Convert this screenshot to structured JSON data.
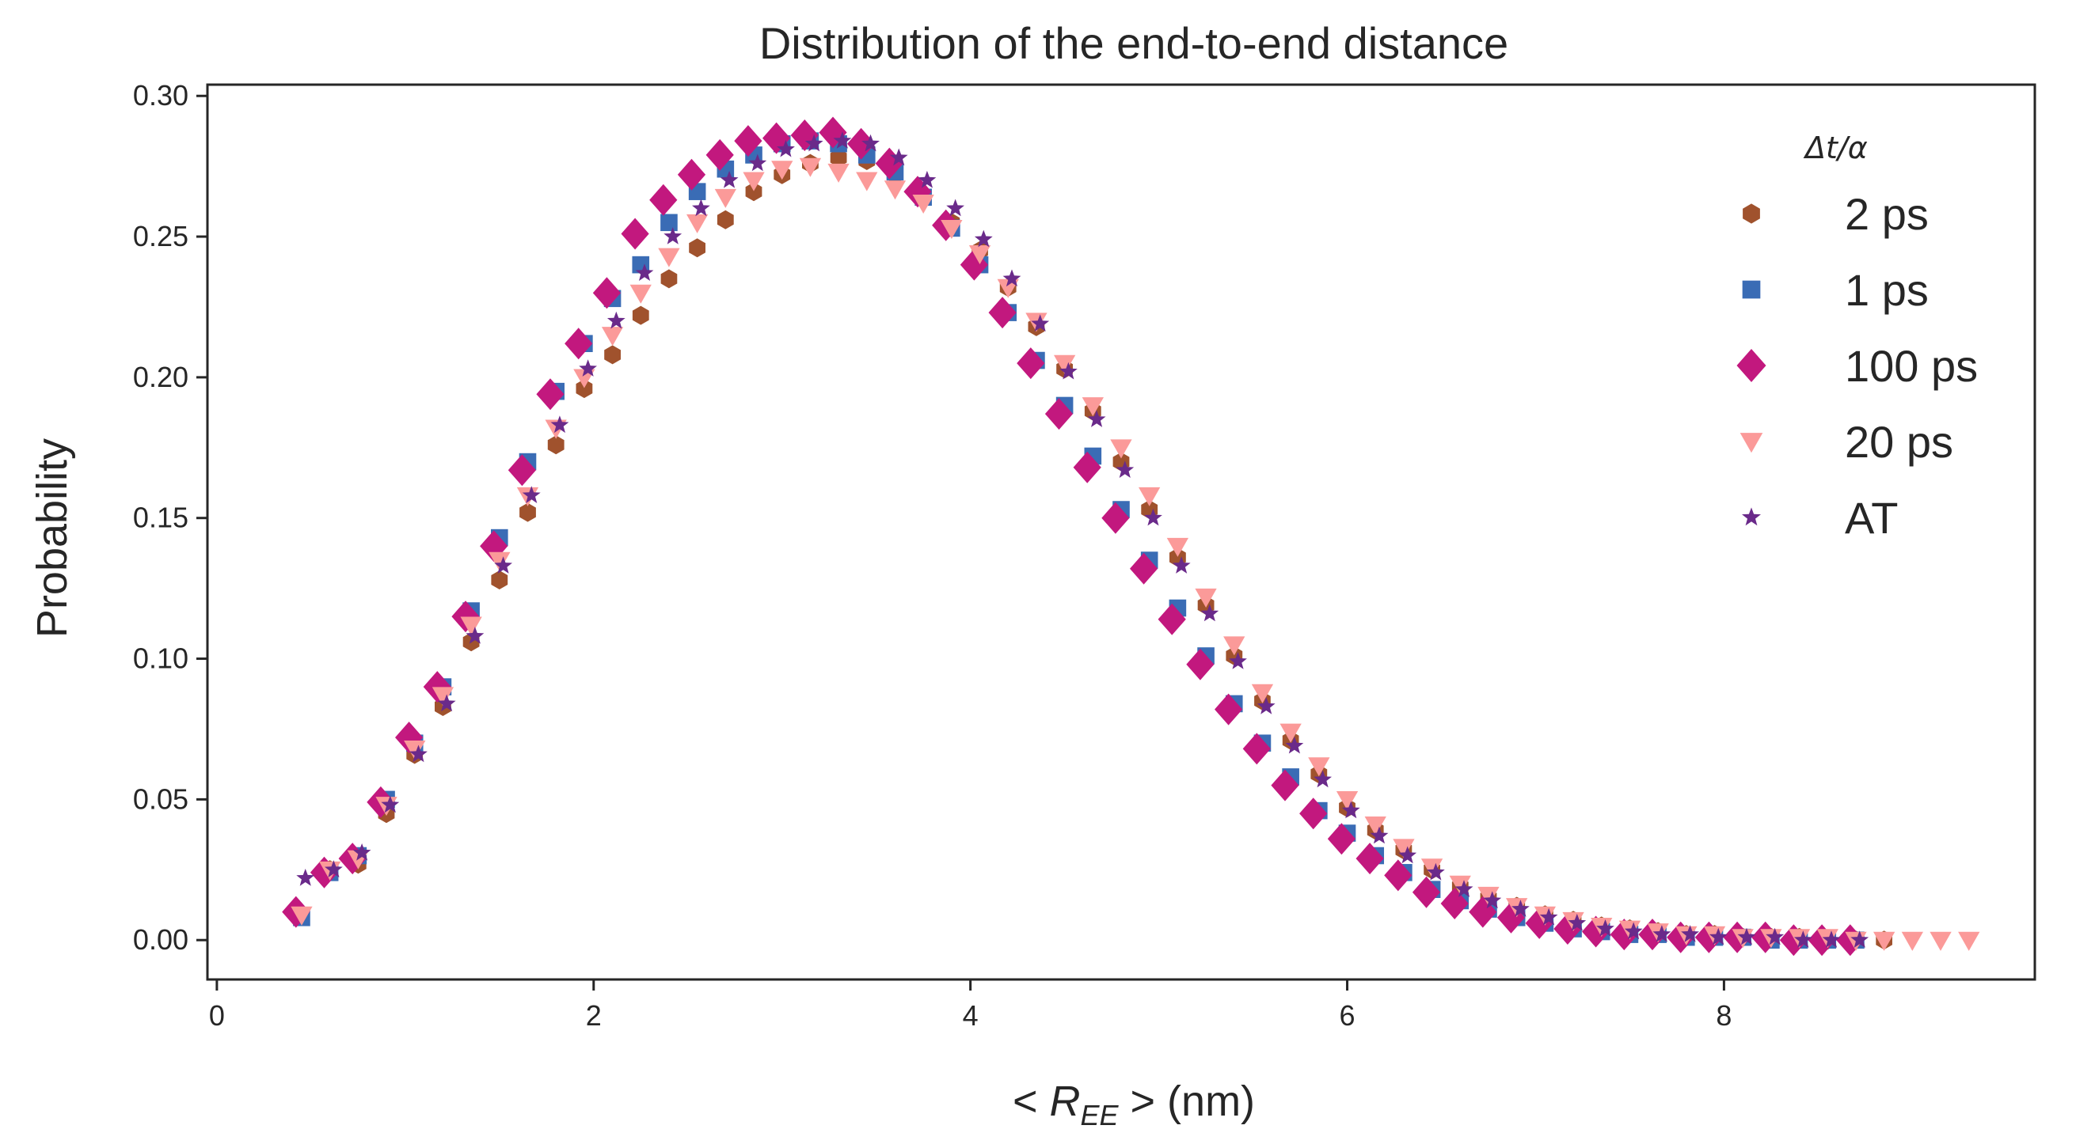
{
  "chart_data": {
    "type": "scatter",
    "title": "Distribution of the end-to-end distance",
    "xlabel_prefix": "< ",
    "xlabel_symbol": "R",
    "xlabel_subscript": "EE",
    "xlabel_suffix": " >  (nm)",
    "ylabel": "Probability",
    "xlim": [
      -0.05,
      9.65
    ],
    "ylim": [
      -0.014,
      0.304
    ],
    "x_ticks": [
      0,
      2,
      4,
      6,
      8
    ],
    "x_tick_labels": [
      "0",
      "2",
      "4",
      "6",
      "8"
    ],
    "y_ticks": [
      0.0,
      0.05,
      0.1,
      0.15,
      0.2,
      0.25,
      0.3
    ],
    "y_tick_labels": [
      "0.00",
      "0.05",
      "0.10",
      "0.15",
      "0.20",
      "0.25",
      "0.30"
    ],
    "grid": false,
    "legend": {
      "position": "top-right",
      "title": "Δt/α",
      "entries": [
        "2 ps",
        "1 ps",
        "100 ps",
        "20 ps",
        "AT"
      ]
    },
    "series": [
      {
        "name": "2 ps",
        "marker": "hexagon",
        "color": "#a0522d",
        "x": [
          0.45,
          0.6,
          0.75,
          0.9,
          1.05,
          1.2,
          1.35,
          1.5,
          1.65,
          1.8,
          1.95,
          2.1,
          2.25,
          2.4,
          2.55,
          2.7,
          2.85,
          3.0,
          3.15,
          3.3,
          3.45,
          3.6,
          3.75,
          3.9,
          4.05,
          4.2,
          4.35,
          4.5,
          4.65,
          4.8,
          4.95,
          5.1,
          5.25,
          5.4,
          5.55,
          5.7,
          5.85,
          6.0,
          6.15,
          6.3,
          6.45,
          6.6,
          6.75,
          6.9,
          7.05,
          7.2,
          7.35,
          7.5,
          7.65,
          7.8,
          7.95,
          8.1,
          8.25,
          8.4,
          8.55,
          8.7,
          8.85
        ],
        "y": [
          0.009,
          0.025,
          0.027,
          0.045,
          0.066,
          0.083,
          0.106,
          0.128,
          0.152,
          0.176,
          0.196,
          0.208,
          0.222,
          0.235,
          0.246,
          0.256,
          0.266,
          0.272,
          0.276,
          0.278,
          0.277,
          0.272,
          0.264,
          0.255,
          0.245,
          0.232,
          0.218,
          0.203,
          0.188,
          0.17,
          0.153,
          0.136,
          0.119,
          0.101,
          0.085,
          0.071,
          0.059,
          0.047,
          0.039,
          0.032,
          0.025,
          0.019,
          0.015,
          0.012,
          0.009,
          0.007,
          0.005,
          0.004,
          0.003,
          0.002,
          0.002,
          0.001,
          0.001,
          0.001,
          0.0,
          0.0,
          0.0
        ]
      },
      {
        "name": "1 ps",
        "marker": "square",
        "color": "#3a6cb5",
        "x": [
          0.45,
          0.6,
          0.75,
          0.9,
          1.05,
          1.2,
          1.35,
          1.5,
          1.65,
          1.8,
          1.95,
          2.1,
          2.25,
          2.4,
          2.55,
          2.7,
          2.85,
          3.0,
          3.15,
          3.3,
          3.45,
          3.6,
          3.75,
          3.9,
          4.05,
          4.2,
          4.35,
          4.5,
          4.65,
          4.8,
          4.95,
          5.1,
          5.25,
          5.4,
          5.55,
          5.7,
          5.85,
          6.0,
          6.15,
          6.3,
          6.45,
          6.6,
          6.75,
          6.9,
          7.05,
          7.2,
          7.35,
          7.5,
          7.65,
          7.8,
          7.95,
          8.1,
          8.25,
          8.4,
          8.55,
          8.7
        ],
        "y": [
          0.008,
          0.024,
          0.03,
          0.05,
          0.07,
          0.09,
          0.117,
          0.143,
          0.17,
          0.195,
          0.212,
          0.228,
          0.24,
          0.255,
          0.266,
          0.274,
          0.279,
          0.283,
          0.284,
          0.283,
          0.279,
          0.273,
          0.264,
          0.253,
          0.24,
          0.223,
          0.206,
          0.19,
          0.172,
          0.153,
          0.135,
          0.118,
          0.101,
          0.084,
          0.07,
          0.058,
          0.046,
          0.038,
          0.03,
          0.024,
          0.018,
          0.014,
          0.011,
          0.008,
          0.006,
          0.004,
          0.003,
          0.002,
          0.002,
          0.001,
          0.001,
          0.001,
          0.0,
          0.0,
          0.0,
          0.0
        ]
      },
      {
        "name": "100 ps",
        "marker": "diamond",
        "color": "#c2187e",
        "x": [
          0.42,
          0.57,
          0.72,
          0.87,
          1.02,
          1.17,
          1.32,
          1.47,
          1.62,
          1.77,
          1.92,
          2.07,
          2.22,
          2.37,
          2.52,
          2.67,
          2.82,
          2.97,
          3.12,
          3.27,
          3.42,
          3.57,
          3.72,
          3.87,
          4.02,
          4.17,
          4.32,
          4.47,
          4.62,
          4.77,
          4.92,
          5.07,
          5.22,
          5.37,
          5.52,
          5.67,
          5.82,
          5.97,
          6.12,
          6.27,
          6.42,
          6.57,
          6.72,
          6.87,
          7.02,
          7.17,
          7.32,
          7.47,
          7.62,
          7.77,
          7.92,
          8.07,
          8.22,
          8.37,
          8.52,
          8.67
        ],
        "y": [
          0.01,
          0.024,
          0.029,
          0.049,
          0.072,
          0.09,
          0.115,
          0.14,
          0.167,
          0.194,
          0.212,
          0.23,
          0.251,
          0.263,
          0.272,
          0.279,
          0.284,
          0.285,
          0.286,
          0.287,
          0.283,
          0.276,
          0.266,
          0.254,
          0.24,
          0.223,
          0.205,
          0.187,
          0.168,
          0.15,
          0.132,
          0.114,
          0.098,
          0.082,
          0.068,
          0.055,
          0.045,
          0.036,
          0.029,
          0.023,
          0.017,
          0.013,
          0.01,
          0.008,
          0.006,
          0.004,
          0.003,
          0.002,
          0.002,
          0.001,
          0.001,
          0.001,
          0.001,
          0.0,
          0.0,
          0.0
        ]
      },
      {
        "name": "20 ps",
        "marker": "triangle-down",
        "color": "#fb9a99",
        "x": [
          0.45,
          0.6,
          0.75,
          0.9,
          1.05,
          1.2,
          1.35,
          1.5,
          1.65,
          1.8,
          1.95,
          2.1,
          2.25,
          2.4,
          2.55,
          2.7,
          2.85,
          3.0,
          3.15,
          3.3,
          3.45,
          3.6,
          3.75,
          3.9,
          4.05,
          4.2,
          4.35,
          4.5,
          4.65,
          4.8,
          4.95,
          5.1,
          5.25,
          5.4,
          5.55,
          5.7,
          5.85,
          6.0,
          6.15,
          6.3,
          6.45,
          6.6,
          6.75,
          6.9,
          7.05,
          7.2,
          7.35,
          7.5,
          7.65,
          7.8,
          7.95,
          8.1,
          8.25,
          8.4,
          8.55,
          8.7,
          8.85,
          9.0,
          9.15,
          9.3
        ],
        "y": [
          0.009,
          0.025,
          0.029,
          0.048,
          0.068,
          0.087,
          0.112,
          0.135,
          0.158,
          0.182,
          0.2,
          0.215,
          0.23,
          0.243,
          0.255,
          0.264,
          0.27,
          0.274,
          0.275,
          0.273,
          0.27,
          0.267,
          0.262,
          0.253,
          0.244,
          0.232,
          0.22,
          0.205,
          0.19,
          0.175,
          0.158,
          0.14,
          0.122,
          0.105,
          0.088,
          0.074,
          0.062,
          0.05,
          0.041,
          0.033,
          0.026,
          0.02,
          0.016,
          0.012,
          0.009,
          0.007,
          0.005,
          0.004,
          0.003,
          0.002,
          0.002,
          0.001,
          0.001,
          0.001,
          0.001,
          0.0,
          0.0,
          0.0,
          0.0,
          0.0
        ]
      },
      {
        "name": "AT",
        "marker": "star",
        "color": "#6a2a8a",
        "x": [
          0.47,
          0.62,
          0.77,
          0.92,
          1.07,
          1.22,
          1.37,
          1.52,
          1.67,
          1.82,
          1.97,
          2.12,
          2.27,
          2.42,
          2.57,
          2.72,
          2.87,
          3.02,
          3.17,
          3.32,
          3.47,
          3.62,
          3.77,
          3.92,
          4.07,
          4.22,
          4.37,
          4.52,
          4.67,
          4.82,
          4.97,
          5.12,
          5.27,
          5.42,
          5.57,
          5.72,
          5.87,
          6.02,
          6.17,
          6.32,
          6.47,
          6.62,
          6.77,
          6.92,
          7.07,
          7.22,
          7.37,
          7.52,
          7.67,
          7.82,
          7.97,
          8.12,
          8.27,
          8.42,
          8.57,
          8.72
        ],
        "y": [
          0.022,
          0.025,
          0.031,
          0.048,
          0.066,
          0.084,
          0.108,
          0.133,
          0.158,
          0.183,
          0.203,
          0.22,
          0.237,
          0.25,
          0.26,
          0.27,
          0.276,
          0.281,
          0.283,
          0.284,
          0.283,
          0.278,
          0.27,
          0.26,
          0.249,
          0.235,
          0.219,
          0.202,
          0.185,
          0.167,
          0.15,
          0.133,
          0.116,
          0.099,
          0.083,
          0.069,
          0.057,
          0.046,
          0.037,
          0.03,
          0.024,
          0.018,
          0.014,
          0.011,
          0.008,
          0.006,
          0.004,
          0.003,
          0.002,
          0.002,
          0.001,
          0.001,
          0.001,
          0.0,
          0.0,
          0.0
        ]
      }
    ]
  }
}
